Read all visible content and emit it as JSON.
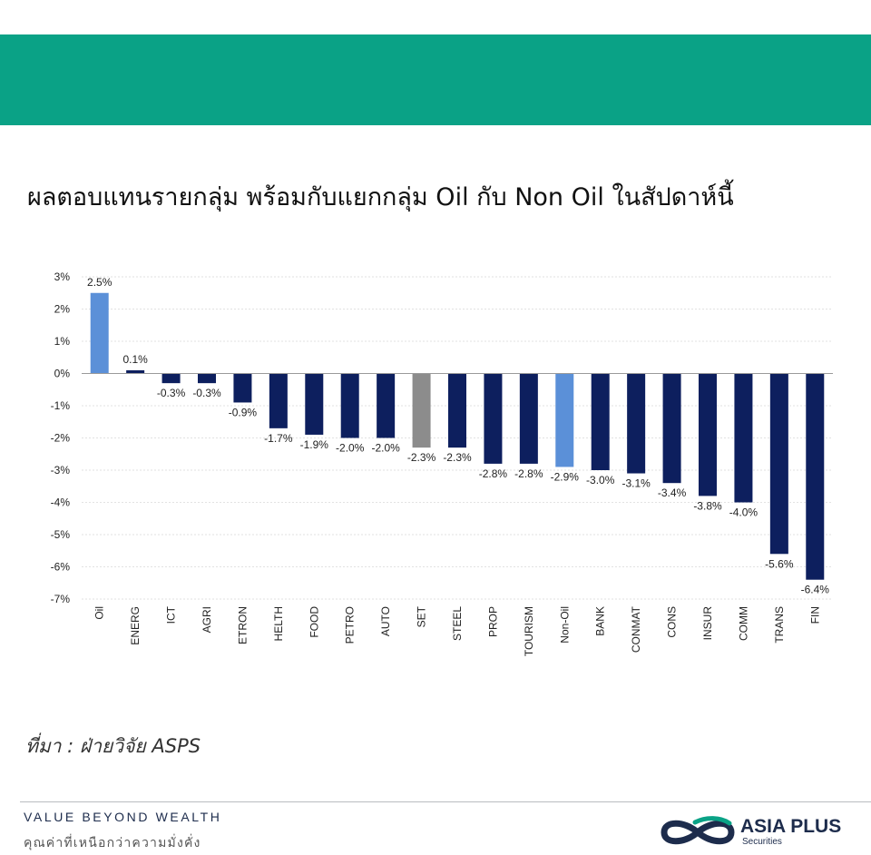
{
  "colors": {
    "banner": "#0aa286",
    "bar_default": "#0d1f5e",
    "bar_oil_group": "#5b90d8",
    "bar_set": "#8c8c8c",
    "text": "#111111"
  },
  "header": {
    "title": "ผลตอบแทนรายกลุ่ม พร้อมกับแยกกลุ่ม Oil กับ Non Oil ในสัปดาห์นี้"
  },
  "chart_data": {
    "type": "bar",
    "title": "",
    "xlabel": "",
    "ylabel": "",
    "ylim": [
      -7,
      3
    ],
    "yticks": [
      "3%",
      "2%",
      "1%",
      "0%",
      "-1%",
      "-2%",
      "-3%",
      "-4%",
      "-5%",
      "-6%",
      "-7%"
    ],
    "grid": true,
    "categories": [
      "Oil",
      "ENERG",
      "ICT",
      "AGRI",
      "ETRON",
      "HELTH",
      "FOOD",
      "PETRO",
      "AUTO",
      "SET",
      "STEEL",
      "PROP",
      "TOURISM",
      "Non-Oil",
      "BANK",
      "CONMAT",
      "CONS",
      "INSUR",
      "COMM",
      "TRANS",
      "FIN"
    ],
    "values": [
      2.5,
      0.1,
      -0.3,
      -0.3,
      -0.9,
      -1.7,
      -1.9,
      -2.0,
      -2.0,
      -2.3,
      -2.3,
      -2.8,
      -2.8,
      -2.9,
      -3.0,
      -3.1,
      -3.4,
      -3.8,
      -4.0,
      -5.6,
      -6.4
    ],
    "value_labels": [
      "2.5%",
      "0.1%",
      "-0.3%",
      "-0.3%",
      "-0.9%",
      "-1.7%",
      "-1.9%",
      "-2.0%",
      "-2.0%",
      "-2.3%",
      "-2.3%",
      "-2.8%",
      "-2.8%",
      "-2.9%",
      "-3.0%",
      "-3.1%",
      "-3.4%",
      "-3.8%",
      "-4.0%",
      "-5.6%",
      "-6.4%"
    ],
    "highlight": {
      "Oil": "oil_group",
      "Non-Oil": "oil_group",
      "SET": "set"
    }
  },
  "source": {
    "text": "ที่มา : ฝ่ายวิจัย ASPS"
  },
  "footer": {
    "tagline": "VALUE BEYOND WEALTH",
    "tagline_th": "คุณค่าที่เหนือกว่าความมั่งคั่ง",
    "logo_name": "ASIA PLUS",
    "logo_sub": "Securities"
  }
}
